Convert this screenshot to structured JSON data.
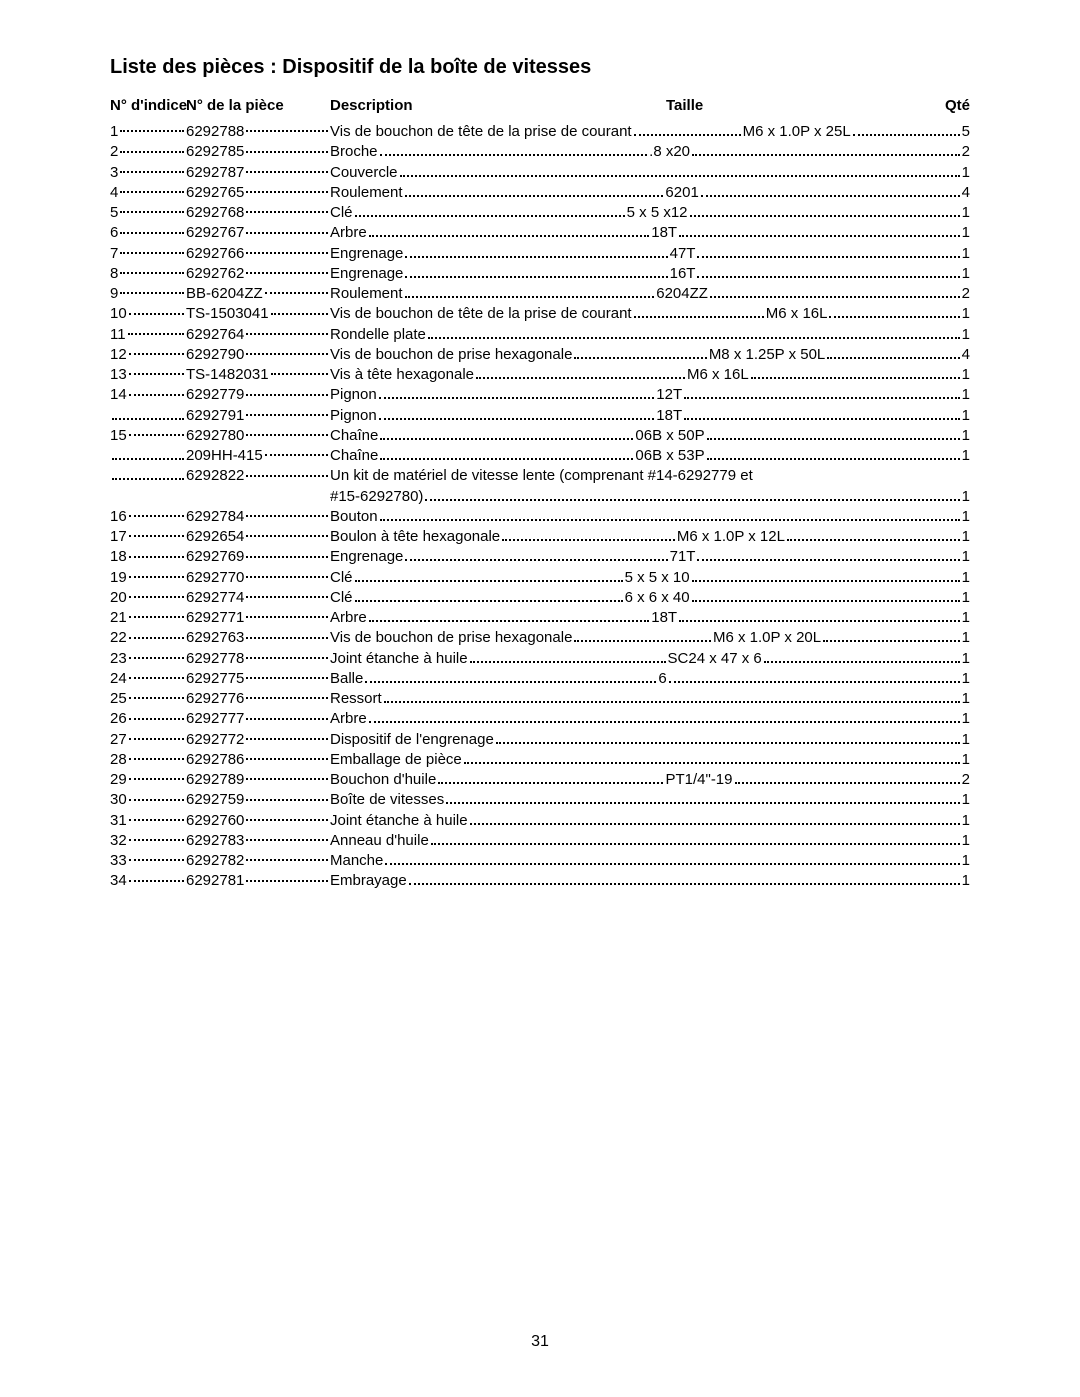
{
  "typography": {
    "title_fontsize": 20,
    "title_fontweight": "bold",
    "header_fontsize": 15,
    "header_fontweight": "bold",
    "body_fontsize": 15,
    "body_fontweight": "normal",
    "font_family": "Arial, Helvetica, sans-serif",
    "text_color": "#000000",
    "background_color": "#ffffff"
  },
  "layout": {
    "col_index_width": 76,
    "col_part_width": 144,
    "col_desc_start": 220,
    "col_size_start": 556,
    "col_qty_right": 860,
    "leader_style": "dotted"
  },
  "title": "Liste des pièces : Dispositif de la boîte de vitesses",
  "headers": {
    "index": "N° d'indice",
    "part": "N° de la pièce",
    "desc": "Description",
    "size": "Taille",
    "qty": "Qté"
  },
  "page_number": "31",
  "rows": [
    {
      "idx": "1",
      "part": "6292788",
      "desc": "Vis de bouchon de tête de la prise de courant",
      "size": "M6 x 1.0P x 25L",
      "qty": "5"
    },
    {
      "idx": "2",
      "part": "6292785",
      "desc": "Broche",
      "size": ".8 x20",
      "qty": "2"
    },
    {
      "idx": "3",
      "part": "6292787",
      "desc": "Couvercle",
      "size": "",
      "qty": "1"
    },
    {
      "idx": "4",
      "part": "6292765",
      "desc": "Roulement",
      "size": "6201",
      "qty": "4"
    },
    {
      "idx": "5",
      "part": "6292768",
      "desc": "Clé",
      "size": "5 x 5 x12",
      "qty": "1"
    },
    {
      "idx": "6",
      "part": "6292767",
      "desc": "Arbre",
      "size": "18T",
      "qty": "1"
    },
    {
      "idx": "7",
      "part": "6292766",
      "desc": "Engrenage",
      "size": "47T",
      "qty": "1"
    },
    {
      "idx": "8",
      "part": "6292762",
      "desc": "Engrenage",
      "size": "16T",
      "qty": "1"
    },
    {
      "idx": "9",
      "part": "BB-6204ZZ",
      "desc": "Roulement",
      "size": "6204ZZ",
      "qty": "2"
    },
    {
      "idx": "10",
      "part": "TS-1503041",
      "desc": "Vis de bouchon de tête de la prise de courant",
      "size": "M6 x 16L",
      "qty": "1"
    },
    {
      "idx": "11",
      "part": "6292764",
      "desc": "Rondelle plate",
      "size": "",
      "qty": "1"
    },
    {
      "idx": "12",
      "part": "6292790",
      "desc": "Vis de bouchon de prise hexagonale",
      "size": "M8 x 1.25P x 50L",
      "qty": "4"
    },
    {
      "idx": "13",
      "part": "TS-1482031",
      "desc": "Vis à tête hexagonale",
      "size": "M6 x 16L",
      "qty": "1"
    },
    {
      "idx": "14",
      "part": "6292779",
      "desc": "Pignon",
      "size": "12T",
      "qty": "1"
    },
    {
      "idx": "",
      "part": "6292791",
      "desc": "Pignon",
      "size": "18T",
      "qty": "1"
    },
    {
      "idx": "15",
      "part": "6292780",
      "desc": "Chaîne",
      "size": "06B x 50P",
      "qty": "1"
    },
    {
      "idx": "",
      "part": "209HH-415",
      "desc": "Chaîne",
      "size": "06B x 53P",
      "qty": "1"
    },
    {
      "idx": "",
      "part": "6292822",
      "desc": "Un kit de matériel de vitesse lente (comprenant #14-6292779 et",
      "size": null,
      "qty": null,
      "no_trailing_dots": true
    },
    {
      "continuation": true,
      "desc": "#15-6292780)",
      "qty": "1"
    },
    {
      "idx": "16",
      "part": "6292784",
      "desc": "Bouton",
      "size": "",
      "qty": "1"
    },
    {
      "idx": "17",
      "part": "6292654",
      "desc": "Boulon à tête hexagonale",
      "size": "M6 x 1.0P x 12L",
      "qty": "1"
    },
    {
      "idx": "18",
      "part": "6292769",
      "desc": "Engrenage",
      "size": "71T",
      "qty": "1"
    },
    {
      "idx": "19",
      "part": "6292770",
      "desc": "Clé",
      "size": "5 x 5 x 10",
      "qty": "1"
    },
    {
      "idx": "20",
      "part": "6292774",
      "desc": "Clé",
      "size": "6 x 6 x 40",
      "qty": "1"
    },
    {
      "idx": "21",
      "part": "6292771",
      "desc": "Arbre",
      "size": "18T",
      "qty": "1"
    },
    {
      "idx": "22",
      "part": "6292763",
      "desc": "Vis de bouchon de prise hexagonale",
      "size": "M6 x 1.0P x 20L",
      "qty": "1"
    },
    {
      "idx": "23",
      "part": "6292778",
      "desc": "Joint étanche à huile",
      "size": "SC24 x 47 x 6",
      "qty": "1"
    },
    {
      "idx": "24",
      "part": "6292775",
      "desc": "Balle",
      "size": "   6",
      "qty": "1"
    },
    {
      "idx": "25",
      "part": "6292776",
      "desc": "Ressort",
      "size": "",
      "qty": "1"
    },
    {
      "idx": "26",
      "part": "6292777",
      "desc": "Arbre",
      "size": "",
      "qty": "1"
    },
    {
      "idx": "27",
      "part": "6292772",
      "desc": "Dispositif de l'engrenage",
      "size": "",
      "qty": "1"
    },
    {
      "idx": "28",
      "part": "6292786",
      "desc": "Emballage de pièce",
      "size": "",
      "qty": "1"
    },
    {
      "idx": "29",
      "part": "6292789",
      "desc": "Bouchon d'huile",
      "size": "PT1/4\"-19",
      "qty": "2"
    },
    {
      "idx": "30",
      "part": "6292759",
      "desc": "Boîte de vitesses",
      "size": "",
      "qty": "1"
    },
    {
      "idx": "31",
      "part": "6292760",
      "desc": "Joint étanche à huile",
      "size": "",
      "qty": "1"
    },
    {
      "idx": "32",
      "part": "6292783",
      "desc": "Anneau d'huile",
      "size": "",
      "qty": "1"
    },
    {
      "idx": "33",
      "part": "6292782",
      "desc": "Manche",
      "size": "",
      "qty": "1"
    },
    {
      "idx": "34",
      "part": "6292781",
      "desc": "Embrayage",
      "size": "",
      "qty": "1"
    }
  ]
}
